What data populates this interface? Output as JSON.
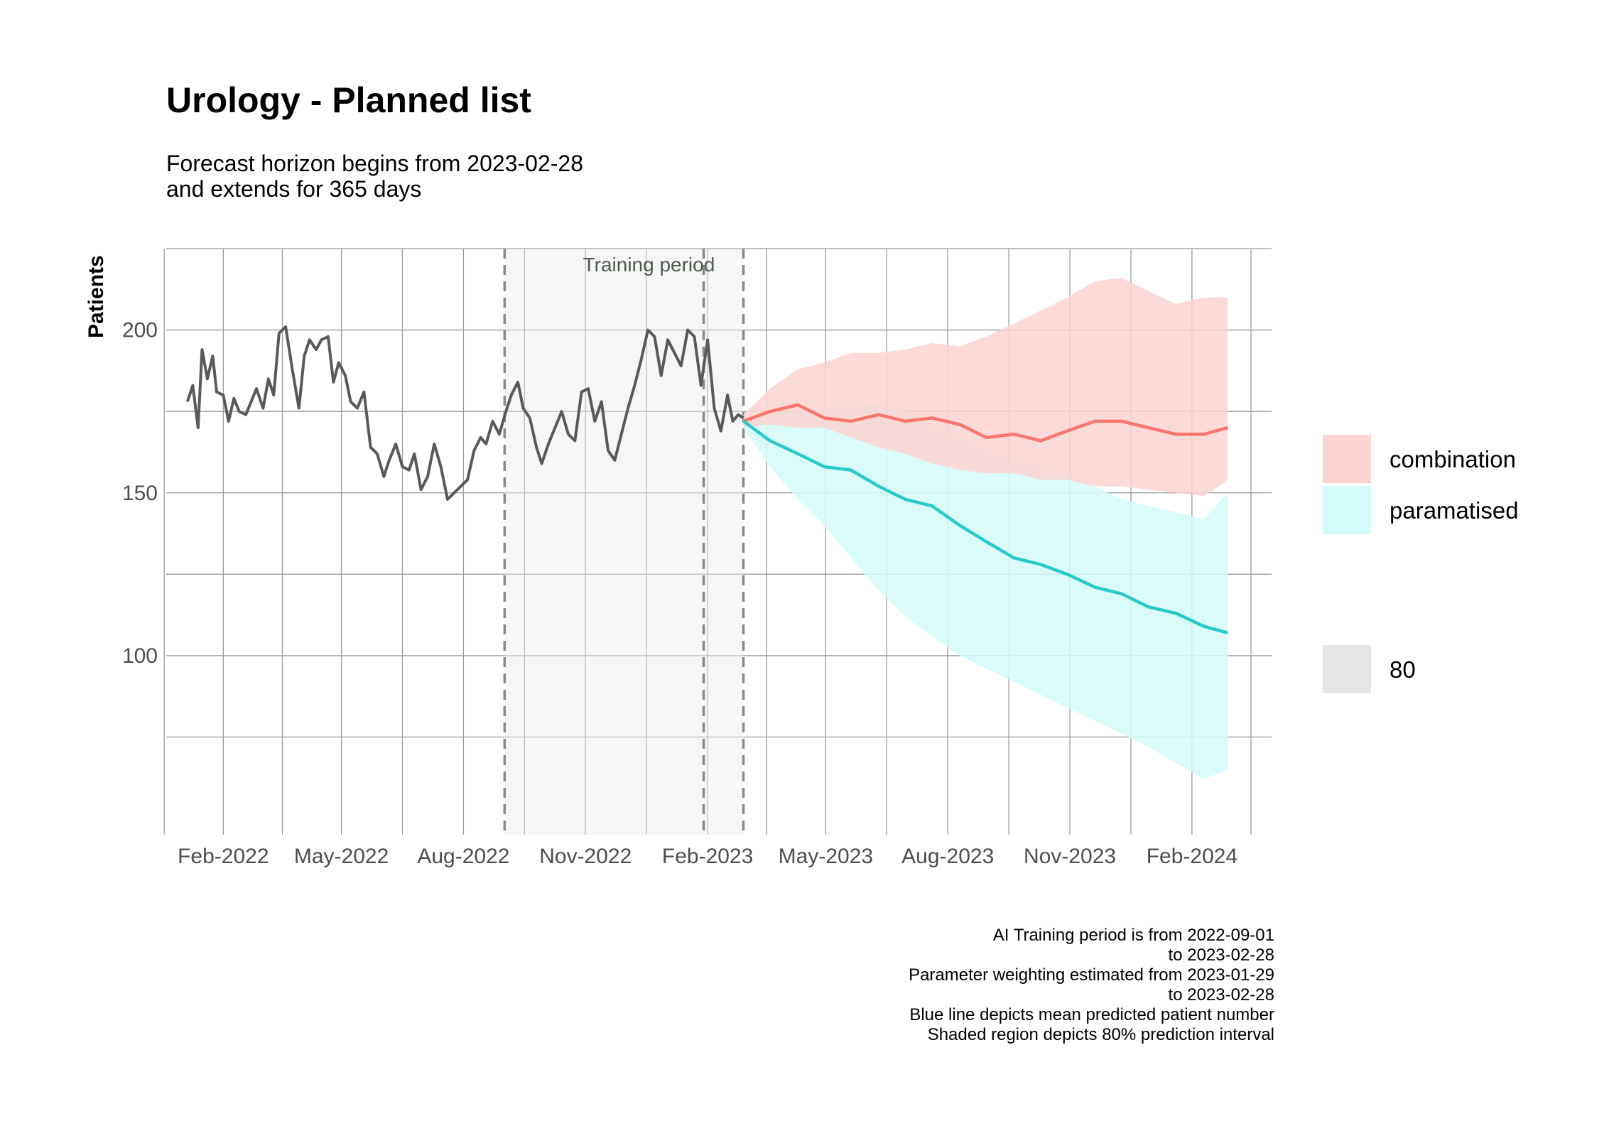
{
  "chart_data": {
    "type": "line",
    "title": "Urology - Planned list",
    "subtitle_lines": [
      "Forecast horizon begins from 2023-02-28",
      "and extends for 365 days"
    ],
    "xlabel": "",
    "ylabel": "Patients",
    "x_tick_labels": [
      "Feb-2022",
      "May-2022",
      "Aug-2022",
      "Nov-2022",
      "Feb-2023",
      "May-2023",
      "Aug-2023",
      "Nov-2023",
      "Feb-2024"
    ],
    "y_ticks": [
      100,
      150,
      200
    ],
    "ylim": [
      45,
      225
    ],
    "xlim": [
      "2021-12-20",
      "2024-04-01"
    ],
    "grid": true,
    "training_period": {
      "label": "Training period",
      "start": "2022-09-01",
      "end": "2023-02-28",
      "weighting_start": "2023-01-29"
    },
    "historical": {
      "name": "",
      "color": "#595959",
      "x": [
        "2022-01-05",
        "2022-01-09",
        "2022-01-13",
        "2022-01-16",
        "2022-01-20",
        "2022-01-24",
        "2022-01-27",
        "2022-02-01",
        "2022-02-05",
        "2022-02-09",
        "2022-02-13",
        "2022-02-18",
        "2022-02-22",
        "2022-02-26",
        "2022-03-03",
        "2022-03-07",
        "2022-03-11",
        "2022-03-15",
        "2022-03-20",
        "2022-03-25",
        "2022-03-30",
        "2022-04-03",
        "2022-04-07",
        "2022-04-12",
        "2022-04-16",
        "2022-04-21",
        "2022-04-25",
        "2022-04-29",
        "2022-05-04",
        "2022-05-08",
        "2022-05-13",
        "2022-05-18",
        "2022-05-23",
        "2022-05-28",
        "2022-06-02",
        "2022-06-06",
        "2022-06-11",
        "2022-06-16",
        "2022-06-21",
        "2022-06-25",
        "2022-06-30",
        "2022-07-05",
        "2022-07-10",
        "2022-07-15",
        "2022-07-20",
        "2022-07-25",
        "2022-07-30",
        "2022-08-04",
        "2022-08-09",
        "2022-08-14",
        "2022-08-18",
        "2022-08-23",
        "2022-08-28",
        "2022-09-02",
        "2022-09-06",
        "2022-09-11",
        "2022-09-15",
        "2022-09-20",
        "2022-09-25",
        "2022-09-29",
        "2022-10-04",
        "2022-10-09",
        "2022-10-14",
        "2022-10-19",
        "2022-10-24",
        "2022-10-29",
        "2022-11-03",
        "2022-11-08",
        "2022-11-13",
        "2022-11-18",
        "2022-11-23",
        "2022-11-28",
        "2022-12-03",
        "2022-12-08",
        "2022-12-13",
        "2022-12-18",
        "2022-12-23",
        "2022-12-28",
        "2023-01-02",
        "2023-01-07",
        "2023-01-12",
        "2023-01-17",
        "2023-01-22",
        "2023-01-27",
        "2023-02-01",
        "2023-02-06",
        "2023-02-11",
        "2023-02-16",
        "2023-02-20",
        "2023-02-24",
        "2023-02-28"
      ],
      "values": [
        178,
        183,
        170,
        194,
        185,
        192,
        181,
        180,
        172,
        179,
        175,
        174,
        178,
        182,
        176,
        185,
        180,
        199,
        201,
        188,
        176,
        192,
        197,
        194,
        197,
        198,
        184,
        190,
        186,
        178,
        176,
        181,
        164,
        162,
        155,
        160,
        165,
        158,
        157,
        162,
        151,
        155,
        165,
        158,
        148,
        150,
        152,
        154,
        163,
        167,
        165,
        172,
        168,
        175,
        180,
        184,
        176,
        173,
        164,
        159,
        165,
        170,
        175,
        168,
        166,
        181,
        182,
        172,
        178,
        163,
        160,
        168,
        176,
        183,
        191,
        200,
        198,
        186,
        197,
        193,
        189,
        200,
        198,
        183,
        197,
        176,
        169,
        180,
        172,
        174,
        173
      ],
      "y_tick_reference": null
    },
    "series": [
      {
        "name": "combination",
        "color": "#F8766D",
        "band_color": "#FAD4D1",
        "x": [
          "2023-02-28",
          "2023-03-20",
          "2023-04-10",
          "2023-04-30",
          "2023-05-20",
          "2023-06-10",
          "2023-06-30",
          "2023-07-20",
          "2023-08-10",
          "2023-08-30",
          "2023-09-20",
          "2023-10-10",
          "2023-10-30",
          "2023-11-20",
          "2023-12-10",
          "2023-12-30",
          "2024-01-20",
          "2024-02-10",
          "2024-02-28"
        ],
        "mean": [
          172,
          175,
          177,
          173,
          172,
          174,
          172,
          173,
          171,
          167,
          168,
          166,
          169,
          172,
          172,
          170,
          168,
          168,
          170
        ],
        "lower_80": [
          170,
          171,
          170,
          170,
          167,
          164,
          162,
          159,
          157,
          156,
          156,
          154,
          154,
          152,
          152,
          151,
          150,
          149,
          154
        ],
        "upper_80": [
          174,
          182,
          188,
          190,
          193,
          193,
          194,
          196,
          195,
          198,
          202,
          206,
          210,
          215,
          216,
          212,
          208,
          210,
          210
        ]
      },
      {
        "name": "paramatised",
        "color": "#2BC9C9",
        "band_color": "#D5FAFA",
        "x": [
          "2023-02-28",
          "2023-03-20",
          "2023-04-10",
          "2023-04-30",
          "2023-05-20",
          "2023-06-10",
          "2023-06-30",
          "2023-07-20",
          "2023-08-10",
          "2023-08-30",
          "2023-09-20",
          "2023-10-10",
          "2023-10-30",
          "2023-11-20",
          "2023-12-10",
          "2023-12-30",
          "2024-01-20",
          "2024-02-10",
          "2024-02-28"
        ],
        "mean": [
          172,
          166,
          162,
          158,
          157,
          152,
          148,
          146,
          140,
          135,
          130,
          128,
          125,
          121,
          119,
          115,
          113,
          109,
          107
        ],
        "lower_80": [
          170,
          158,
          148,
          140,
          130,
          120,
          112,
          106,
          100,
          96,
          92,
          88,
          84,
          80,
          76,
          72,
          67,
          62,
          65
        ],
        "upper_80": [
          173,
          174,
          175,
          176,
          178,
          177,
          175,
          170,
          167,
          163,
          160,
          158,
          156,
          152,
          148,
          146,
          144,
          142,
          150
        ]
      }
    ],
    "legend": {
      "position": "right",
      "items": [
        {
          "label": "combination",
          "color": "#FAD4D1"
        },
        {
          "label": "paramatised",
          "color": "#D5FAFA"
        }
      ],
      "level_items": [
        {
          "label": "80",
          "color": "#E5E5E5"
        }
      ]
    },
    "caption_lines": [
      "AI Training period is from 2022-09-01",
      "to 2023-02-28",
      "Parameter weighting estimated from 2023-01-29",
      "to 2023-02-28",
      "Blue line depicts mean predicted patient number",
      "Shaded region depicts 80% prediction interval"
    ]
  }
}
